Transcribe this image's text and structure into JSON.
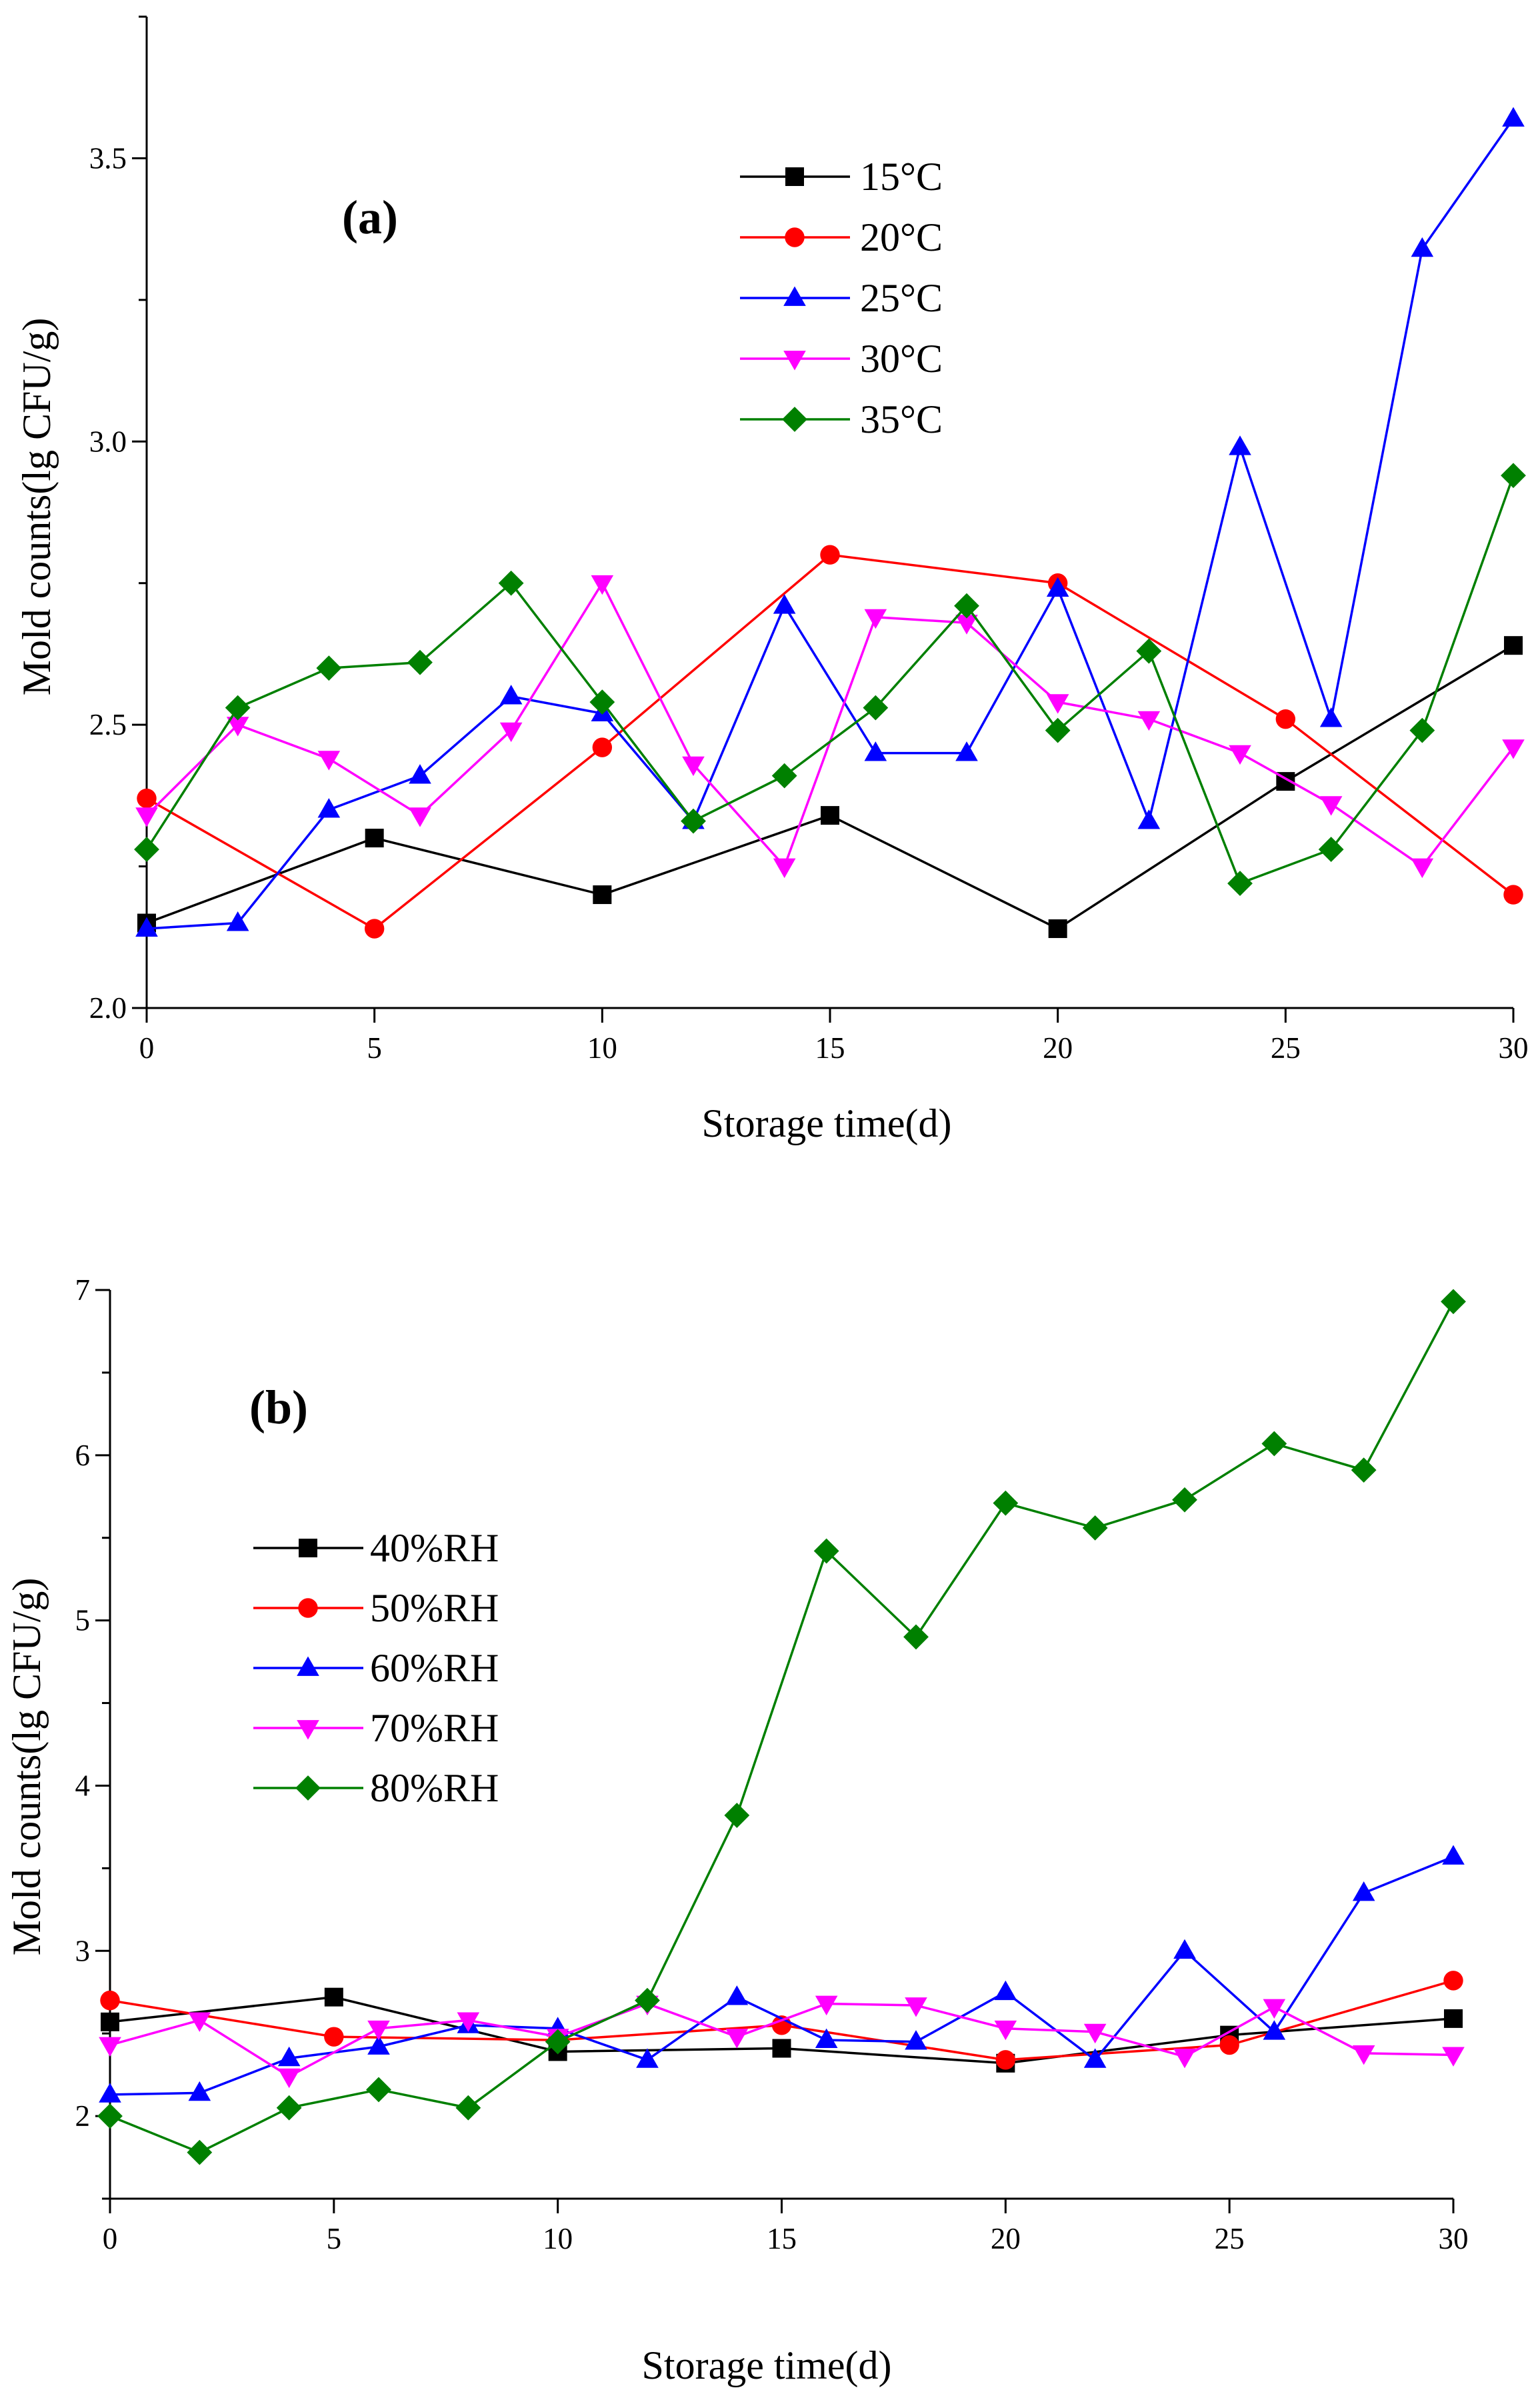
{
  "chart_data": [
    {
      "panel_label": "(a)",
      "type": "line",
      "xlabel": "Storage time(d)",
      "ylabel": "Mold counts(lg CFU/g)",
      "xlim": [
        0,
        30
      ],
      "ylim": [
        2.0,
        3.75
      ],
      "xticks": [
        0,
        5,
        10,
        15,
        20,
        25,
        30
      ],
      "xtick_labels": [
        "0",
        "5",
        "10",
        "15",
        "20",
        "25",
        "30"
      ],
      "yticks": [
        2.0,
        2.5,
        3.0,
        3.5
      ],
      "ytick_labels": [
        "2.0",
        "2.5",
        "3.0",
        "3.5"
      ],
      "grid": false,
      "legend_position": "top-center",
      "series": [
        {
          "name": "15°C",
          "color": "#000000",
          "marker": "square",
          "x": [
            0,
            5,
            10,
            15,
            20,
            25,
            30
          ],
          "y": [
            2.15,
            2.3,
            2.2,
            2.34,
            2.14,
            2.4,
            2.64
          ]
        },
        {
          "name": "20°C",
          "color": "#ff0000",
          "marker": "circle",
          "x": [
            0,
            5,
            10,
            15,
            20,
            25,
            30
          ],
          "y": [
            2.37,
            2.14,
            2.46,
            2.8,
            2.75,
            2.51,
            2.2
          ]
        },
        {
          "name": "25°C",
          "color": "#0000ff",
          "marker": "triangle-up",
          "x": [
            0,
            2,
            4,
            6,
            8,
            10,
            12,
            14,
            16,
            18,
            20,
            22,
            24,
            26,
            28,
            30
          ],
          "y": [
            2.14,
            2.15,
            2.35,
            2.41,
            2.55,
            2.52,
            2.33,
            2.71,
            2.45,
            2.45,
            2.74,
            2.33,
            2.99,
            2.51,
            3.34,
            3.57
          ]
        },
        {
          "name": "30°C",
          "color": "#ff00ff",
          "marker": "triangle-down",
          "x": [
            0,
            2,
            4,
            6,
            8,
            10,
            12,
            14,
            16,
            18,
            20,
            22,
            24,
            26,
            28,
            30
          ],
          "y": [
            2.34,
            2.5,
            2.44,
            2.34,
            2.49,
            2.75,
            2.43,
            2.25,
            2.69,
            2.68,
            2.54,
            2.51,
            2.45,
            2.36,
            2.25,
            2.46
          ]
        },
        {
          "name": "35°C",
          "color": "#008000",
          "marker": "diamond",
          "x": [
            0,
            2,
            4,
            6,
            8,
            10,
            12,
            14,
            16,
            18,
            20,
            22,
            24,
            26,
            28,
            30
          ],
          "y": [
            2.28,
            2.53,
            2.6,
            2.61,
            2.75,
            2.54,
            2.33,
            2.41,
            2.53,
            2.71,
            2.49,
            2.63,
            2.22,
            2.28,
            2.49,
            2.94
          ]
        }
      ]
    },
    {
      "panel_label": "(b)",
      "type": "line",
      "xlabel": "Storage time(d)",
      "ylabel": "Mold counts(lg CFU/g)",
      "xlim": [
        0,
        30
      ],
      "ylim": [
        1.5,
        7.0
      ],
      "xticks": [
        0,
        5,
        10,
        15,
        20,
        25,
        30
      ],
      "xtick_labels": [
        "0",
        "5",
        "10",
        "15",
        "20",
        "25",
        "30"
      ],
      "yticks": [
        2,
        3,
        4,
        5,
        6,
        7
      ],
      "ytick_labels": [
        "2",
        "3",
        "4",
        "5",
        "6",
        "7"
      ],
      "grid": false,
      "legend_position": "left",
      "series": [
        {
          "name": "40%RH",
          "color": "#000000",
          "marker": "square",
          "x": [
            0,
            5,
            10,
            15,
            20,
            25,
            30
          ],
          "y": [
            2.57,
            2.72,
            2.39,
            2.41,
            2.32,
            2.49,
            2.59
          ]
        },
        {
          "name": "50%RH",
          "color": "#ff0000",
          "marker": "circle",
          "x": [
            0,
            5,
            10,
            15,
            20,
            25,
            30
          ],
          "y": [
            2.7,
            2.48,
            2.46,
            2.55,
            2.34,
            2.43,
            2.82
          ]
        },
        {
          "name": "60%RH",
          "color": "#0000ff",
          "marker": "triangle-up",
          "x": [
            0,
            2,
            4,
            6,
            8,
            10,
            12,
            14,
            16,
            18,
            20,
            22,
            24,
            26,
            28,
            30
          ],
          "y": [
            2.13,
            2.14,
            2.35,
            2.42,
            2.55,
            2.53,
            2.34,
            2.72,
            2.46,
            2.45,
            2.75,
            2.34,
            3.0,
            2.51,
            3.35,
            3.57
          ]
        },
        {
          "name": "70%RH",
          "color": "#ff00ff",
          "marker": "triangle-down",
          "x": [
            0,
            2,
            4,
            6,
            8,
            10,
            12,
            14,
            16,
            18,
            20,
            22,
            24,
            26,
            28,
            30
          ],
          "y": [
            2.43,
            2.58,
            2.24,
            2.53,
            2.58,
            2.48,
            2.68,
            2.48,
            2.68,
            2.67,
            2.53,
            2.51,
            2.36,
            2.66,
            2.38,
            2.37
          ]
        },
        {
          "name": "80%RH",
          "color": "#008000",
          "marker": "diamond",
          "x": [
            0,
            2,
            4,
            6,
            8,
            10,
            12,
            14,
            16,
            18,
            20,
            22,
            24,
            26,
            28,
            30
          ],
          "y": [
            2.0,
            1.78,
            2.05,
            2.16,
            2.05,
            2.45,
            2.7,
            3.82,
            5.42,
            4.9,
            5.71,
            5.56,
            5.73,
            6.07,
            5.91,
            6.93
          ]
        }
      ]
    }
  ]
}
